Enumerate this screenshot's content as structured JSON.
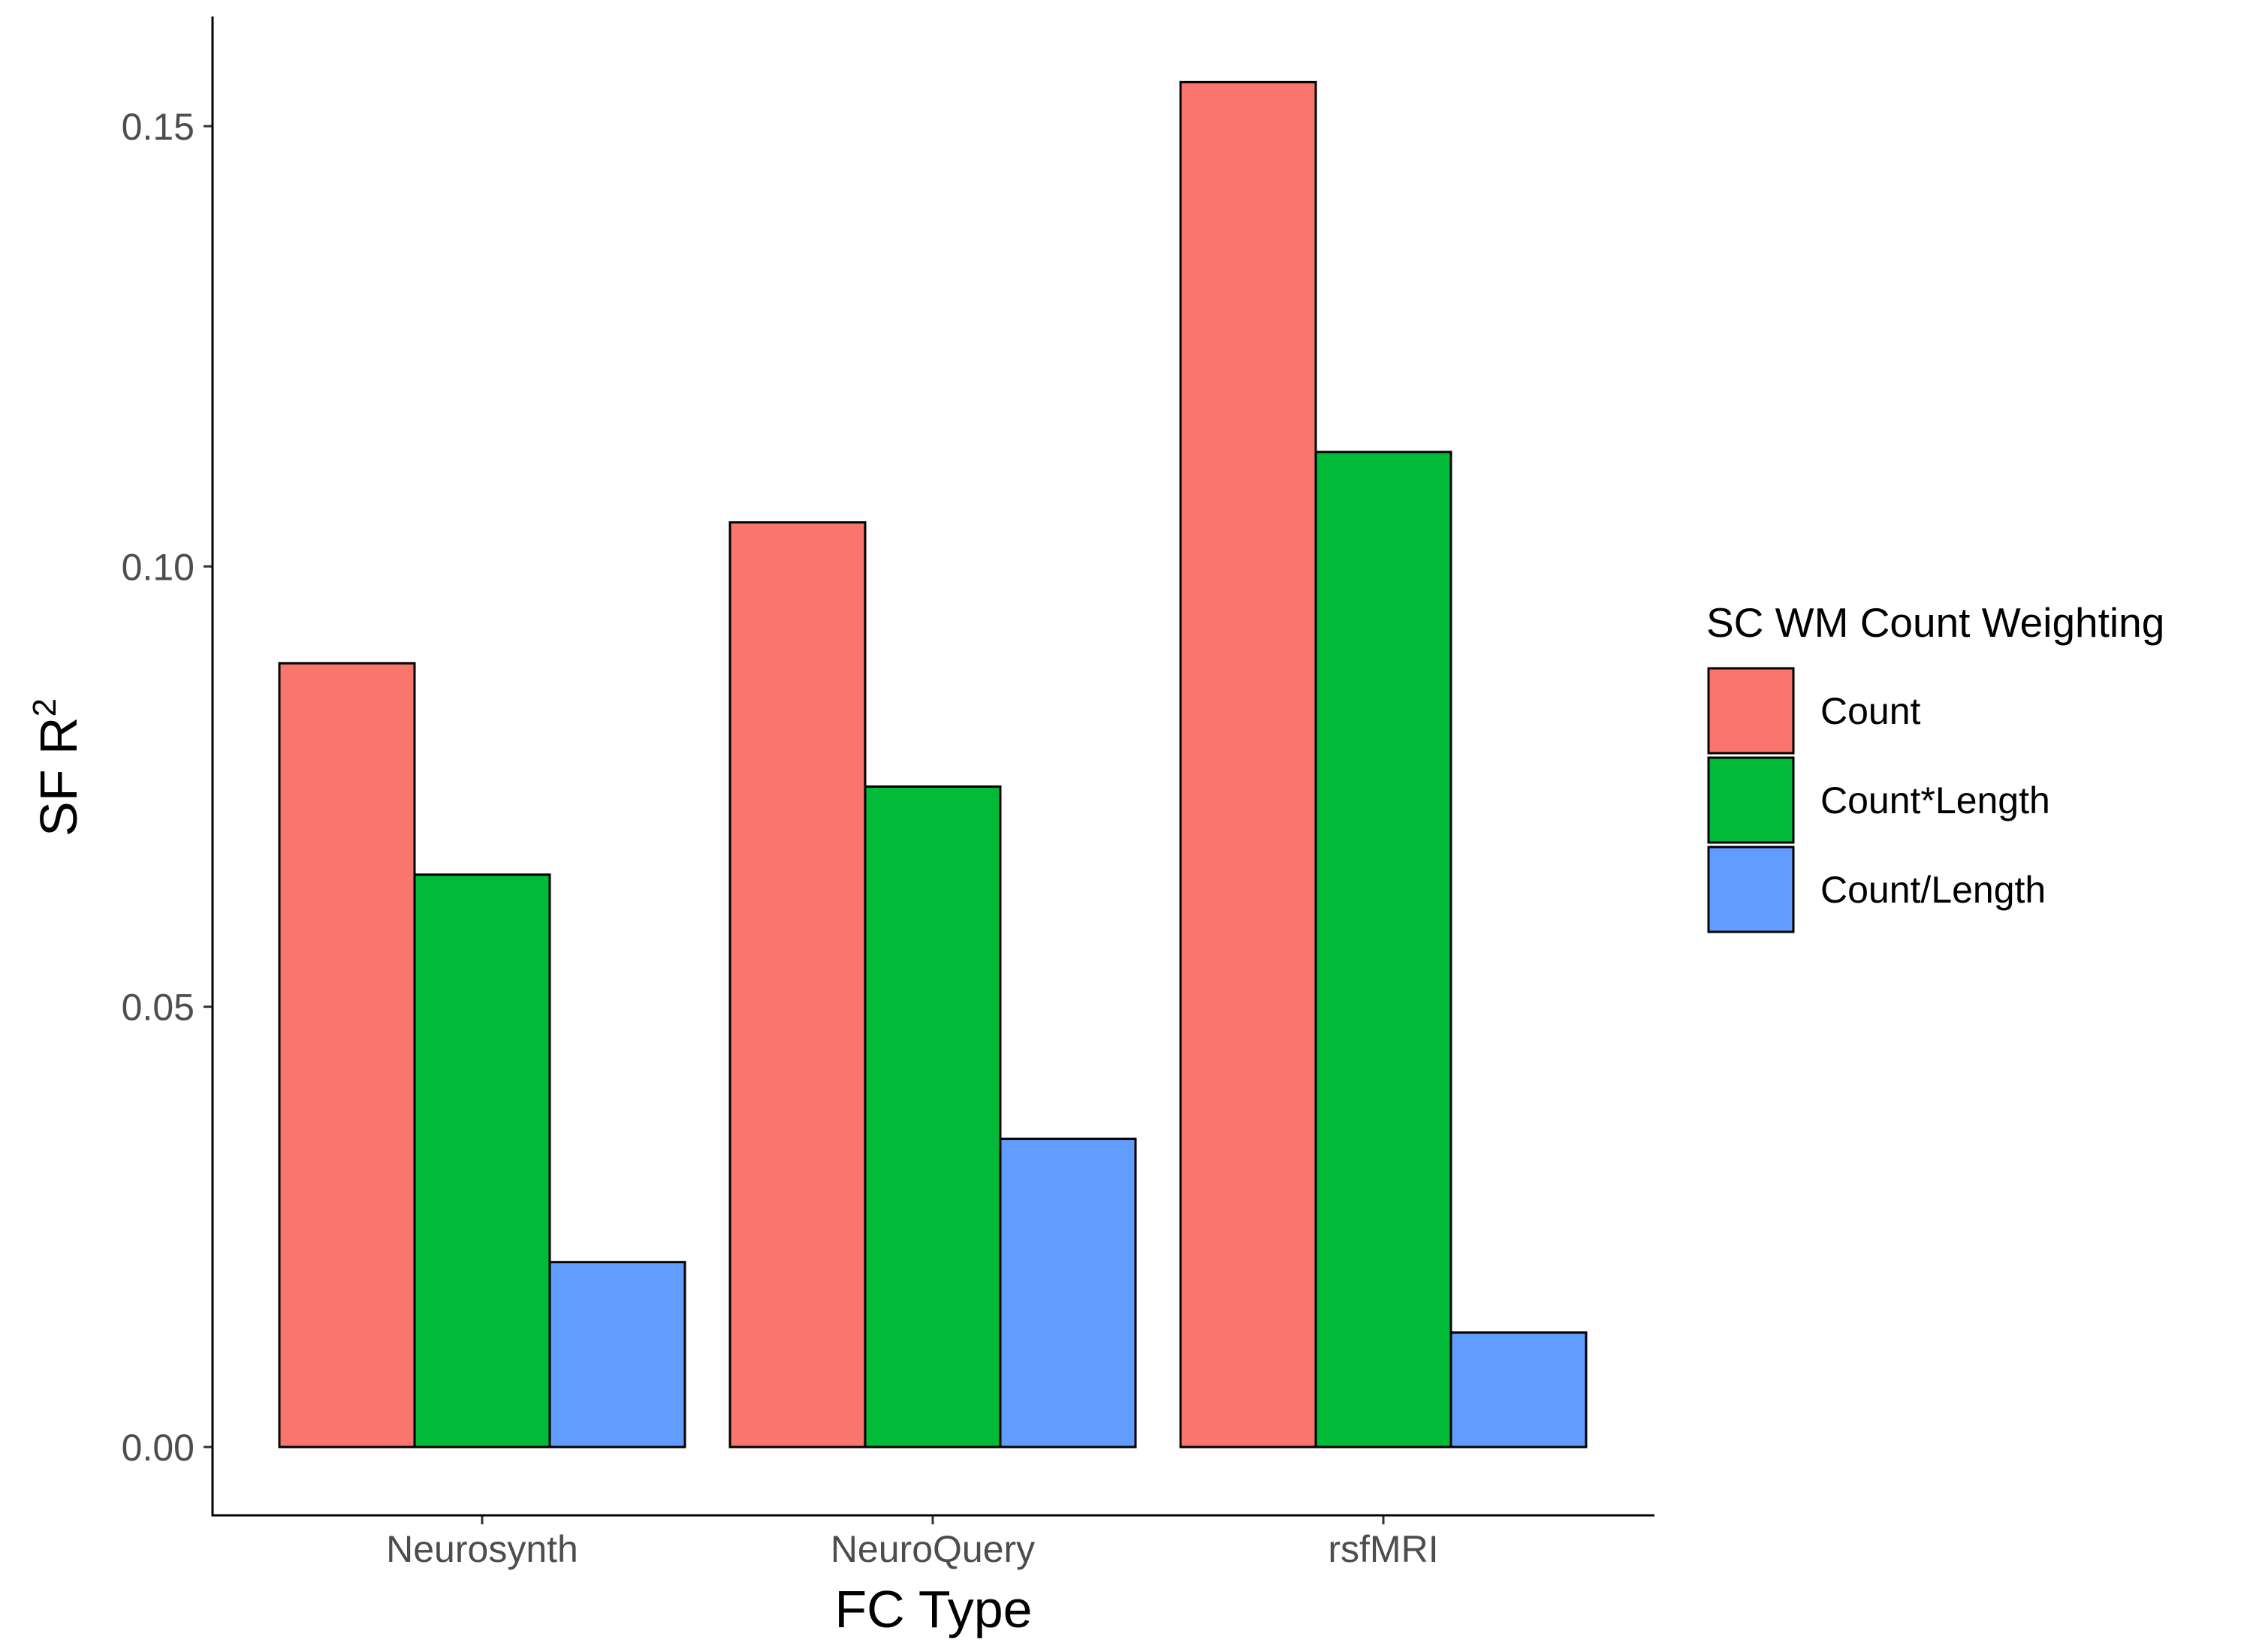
{
  "chart_data": {
    "type": "bar",
    "categories": [
      "Neurosynth",
      "NeuroQuery",
      "rsfMRI"
    ],
    "series": [
      {
        "name": "Count",
        "values": [
          0.089,
          0.105,
          0.155
        ]
      },
      {
        "name": "Count*Length",
        "values": [
          0.065,
          0.075,
          0.113
        ]
      },
      {
        "name": "Count/Length",
        "values": [
          0.021,
          0.035,
          0.013
        ]
      }
    ],
    "colors": [
      "#F8766D",
      "#00BA38",
      "#619CFF"
    ],
    "xlabel": "FC Type",
    "ylabel": {
      "main": "SF R",
      "superscript": "2"
    },
    "ylim": [
      0,
      0.15
    ],
    "yticks": [
      "0.00",
      "0.05",
      "0.10",
      "0.15"
    ],
    "ytick_values": [
      0,
      0.05,
      0.1,
      0.15
    ],
    "legend": {
      "title": "SC WM Count Weighting",
      "position": "right"
    },
    "grid": false
  }
}
